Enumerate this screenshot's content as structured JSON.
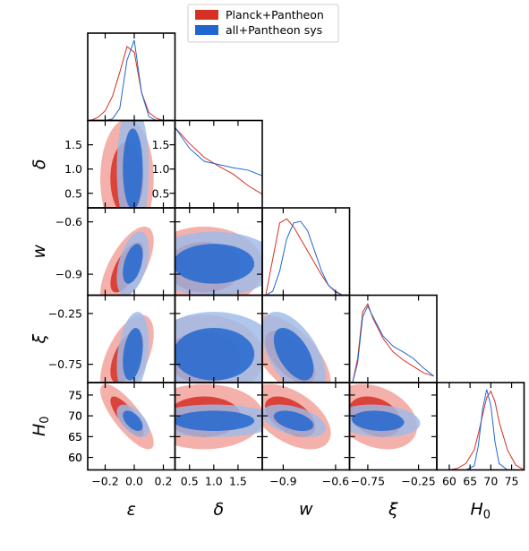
{
  "chart_data": {
    "type": "corner",
    "parameters": [
      {
        "key": "eps",
        "label": "ε",
        "range": [
          -0.32,
          0.28
        ],
        "ticks": [
          -0.2,
          0.0,
          0.2
        ],
        "tick_labels": [
          "−0.2",
          "0.0",
          "0.2"
        ]
      },
      {
        "key": "delta",
        "label": "δ",
        "range": [
          0.2,
          2.0
        ],
        "ticks": [
          0.5,
          1.0,
          1.5
        ],
        "tick_labels": [
          "0.5",
          "1.0",
          "1.5"
        ]
      },
      {
        "key": "w",
        "label": "w",
        "range": [
          -1.02,
          -0.52
        ],
        "ticks": [
          -0.9,
          -0.6
        ],
        "tick_labels": [
          "−0.9",
          "−0.6"
        ]
      },
      {
        "key": "xi",
        "label": "ξ",
        "range": [
          -0.93,
          -0.07
        ],
        "ticks": [
          -0.75,
          -0.25
        ],
        "tick_labels": [
          "−0.75",
          "−0.25"
        ]
      },
      {
        "key": "H0",
        "label": "H",
        "label_sub": "0",
        "range": [
          57,
          78
        ],
        "ticks": [
          60,
          65,
          70,
          75
        ],
        "tick_labels": [
          "60",
          "65",
          "70",
          "75"
        ]
      }
    ],
    "diag_tick_labels": {
      "delta": [
        "0.5",
        "1.0",
        "1.5"
      ],
      "H0": [
        "60",
        "65",
        "70",
        "75"
      ]
    },
    "series": [
      {
        "name": "Planck+Pantheon",
        "color": "#d62f24",
        "color_outer": "#f2a39e",
        "mean": {
          "eps": -0.05,
          "delta": 0.8,
          "w": -0.86,
          "xi": -0.68,
          "H0": 69.8
        },
        "sigma": {
          "eps": 0.075,
          "delta": 0.5,
          "w": 0.095,
          "xi": 0.17,
          "H0": 3.2
        },
        "corr": {
          "eps-w": 0.65,
          "eps-xi": 0.55,
          "eps-H0": -0.8,
          "w-xi": -0.6,
          "w-H0": -0.5,
          "xi-H0": -0.3
        }
      },
      {
        "name": "all+Pantheon sys",
        "color": "#1f67cf",
        "color_outer": "#9dbbe8",
        "mean": {
          "eps": -0.01,
          "delta": 1.0,
          "w": -0.84,
          "xi": -0.65,
          "H0": 68.8
        },
        "sigma": {
          "eps": 0.045,
          "delta": 0.55,
          "w": 0.075,
          "xi": 0.17,
          "H0": 1.6
        },
        "corr": {
          "eps-w": 0.45,
          "eps-xi": 0.3,
          "eps-H0": -0.55,
          "w-xi": -0.55,
          "w-H0": -0.45,
          "xi-H0": -0.15
        }
      }
    ],
    "diagonal_curves": {
      "eps": {
        "x": [
          -0.3,
          -0.25,
          -0.2,
          -0.15,
          -0.1,
          -0.05,
          0.0,
          0.05,
          0.1,
          0.15,
          0.2
        ],
        "Planck+Pantheon": [
          0.0,
          0.04,
          0.12,
          0.3,
          0.6,
          0.92,
          0.85,
          0.35,
          0.1,
          0.03,
          0.0
        ],
        "all+Pantheon sys": [
          0.0,
          0.0,
          0.0,
          0.02,
          0.15,
          0.75,
          1.0,
          0.35,
          0.05,
          0.0,
          0.0
        ]
      },
      "delta": {
        "x": [
          0.2,
          0.5,
          0.8,
          1.1,
          1.4,
          1.7,
          2.0
        ],
        "Planck+Pantheon": [
          1.0,
          0.8,
          0.63,
          0.52,
          0.42,
          0.28,
          0.17
        ],
        "all+Pantheon sys": [
          1.0,
          0.74,
          0.58,
          0.54,
          0.5,
          0.47,
          0.4
        ]
      },
      "w": {
        "x": [
          -1.0,
          -0.96,
          -0.92,
          -0.88,
          -0.84,
          -0.8,
          -0.76,
          -0.72,
          -0.68,
          -0.64,
          -0.6,
          -0.56
        ],
        "Planck+Pantheon": [
          0.0,
          0.45,
          0.9,
          0.95,
          0.85,
          0.7,
          0.55,
          0.4,
          0.25,
          0.12,
          0.05,
          0.0
        ],
        "all+Pantheon sys": [
          0.0,
          0.05,
          0.3,
          0.7,
          0.9,
          0.92,
          0.8,
          0.55,
          0.3,
          0.12,
          0.04,
          0.0
        ]
      },
      "xi": {
        "x": [
          -0.9,
          -0.85,
          -0.8,
          -0.75,
          -0.7,
          -0.6,
          -0.5,
          -0.4,
          -0.3,
          -0.2,
          -0.1
        ],
        "Planck+Pantheon": [
          0.0,
          0.3,
          0.88,
          0.98,
          0.8,
          0.55,
          0.38,
          0.28,
          0.2,
          0.12,
          0.08
        ],
        "all+Pantheon sys": [
          0.0,
          0.25,
          0.82,
          0.95,
          0.82,
          0.58,
          0.45,
          0.38,
          0.3,
          0.18,
          0.08
        ]
      },
      "H0": {
        "x": [
          58,
          60,
          62,
          64,
          66,
          67,
          68,
          69,
          70,
          71,
          72,
          74,
          76,
          78
        ],
        "Planck+Pantheon": [
          0.0,
          0.0,
          0.02,
          0.08,
          0.25,
          0.45,
          0.68,
          0.9,
          0.98,
          0.85,
          0.6,
          0.25,
          0.06,
          0.0
        ],
        "all+Pantheon sys": [
          0.0,
          0.0,
          0.0,
          0.0,
          0.05,
          0.3,
          0.75,
          1.0,
          0.8,
          0.35,
          0.08,
          0.0,
          0.0,
          0.0
        ]
      }
    },
    "legend": {
      "placement": "top",
      "entries": [
        "Planck+Pantheon",
        "all+Pantheon sys"
      ]
    }
  }
}
